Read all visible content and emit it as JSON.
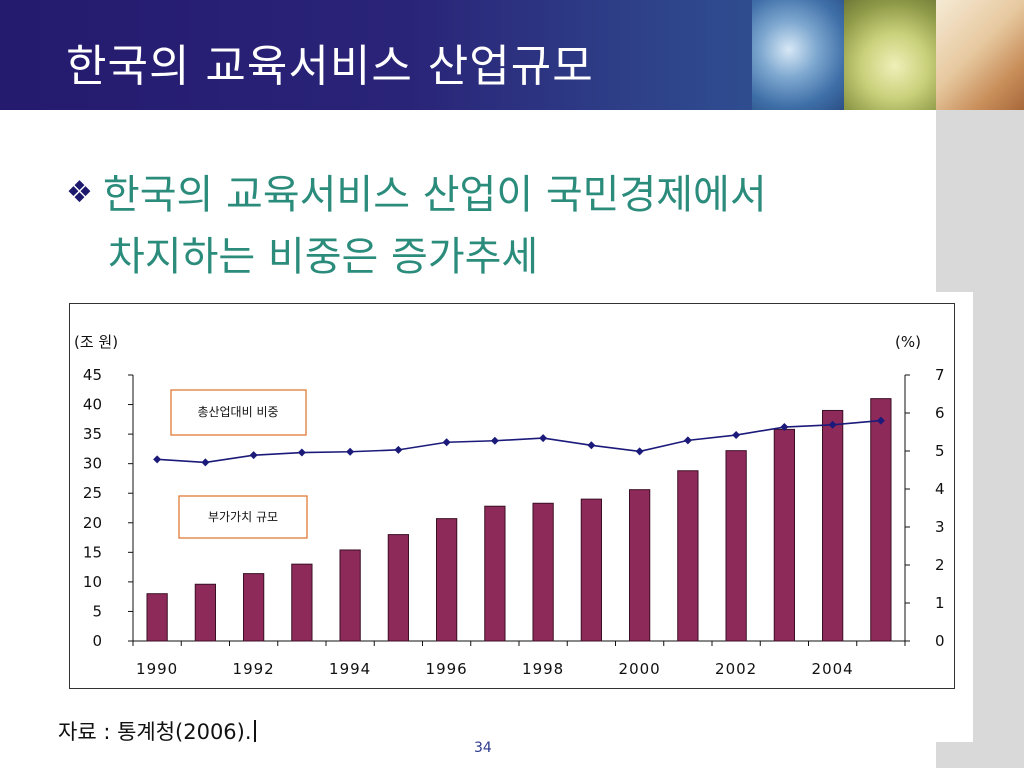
{
  "slide": {
    "title": "한국의 교육서비스 산업규모",
    "bullet_line_1": "한국의 교육서비스 산업이 국민경제에서",
    "bullet_line_2": "차지하는 비중은 증가추세",
    "source": "자료 : 통계청(2006).",
    "page_number": "34"
  },
  "colors": {
    "header": "#2a2478",
    "bullet_text": "#2b8c7c",
    "bar": "#8e2a5a",
    "line": "#1b1a7a",
    "legend_border": "#e07b39"
  },
  "chart_data": {
    "type": "bar+line",
    "y_left_label": "(조 원)",
    "y_right_label": "(%)",
    "ylim_left": [
      0,
      45
    ],
    "ylim_right": [
      0,
      7
    ],
    "y_left_ticks": [
      "0",
      "5",
      "10",
      "15",
      "20",
      "25",
      "30",
      "35",
      "40",
      "45"
    ],
    "y_right_ticks": [
      "0",
      "1",
      "2",
      "3",
      "4",
      "5",
      "6",
      "7"
    ],
    "x_tick_labels": [
      "1990",
      "1992",
      "1994",
      "1996",
      "1998",
      "2000",
      "2002",
      "2004"
    ],
    "categories": [
      1990,
      1991,
      1992,
      1993,
      1994,
      1995,
      1996,
      1997,
      1998,
      1999,
      2000,
      2001,
      2002,
      2003,
      2004,
      2005
    ],
    "series": [
      {
        "name": "부가가치 규모",
        "type": "bar",
        "axis": "left",
        "values": [
          8.0,
          9.6,
          11.4,
          13.0,
          15.4,
          18.0,
          20.7,
          22.8,
          23.3,
          24.0,
          25.6,
          28.8,
          32.2,
          35.8,
          39.0,
          41.0
        ]
      },
      {
        "name": "총산업대비 비중",
        "type": "line",
        "axis": "right",
        "values": [
          4.78,
          4.7,
          4.89,
          4.96,
          4.98,
          5.03,
          5.23,
          5.27,
          5.34,
          5.15,
          4.99,
          5.28,
          5.42,
          5.63,
          5.69,
          5.8
        ]
      }
    ],
    "legend": [
      "총산업대비 비중",
      "부가가치 규모"
    ]
  }
}
